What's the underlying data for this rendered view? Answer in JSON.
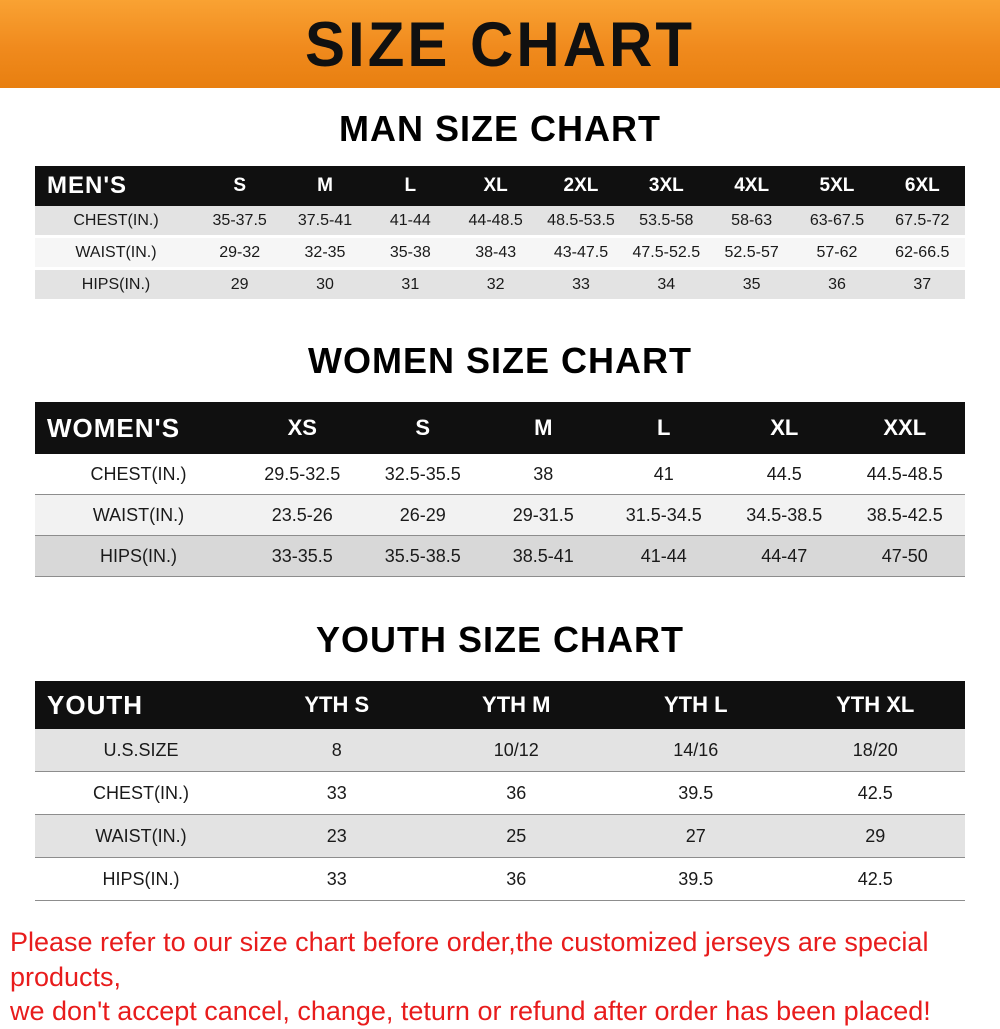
{
  "banner": {
    "title": "SIZE CHART",
    "accent_color": "#f08a1d",
    "text_color": "#101010"
  },
  "chart_data": [
    {
      "type": "table",
      "title": "MAN SIZE CHART",
      "columns": [
        "MEN'S",
        "S",
        "M",
        "L",
        "XL",
        "2XL",
        "3XL",
        "4XL",
        "5XL",
        "6XL"
      ],
      "rows": [
        [
          "CHEST(IN.)",
          "35-37.5",
          "37.5-41",
          "41-44",
          "44-48.5",
          "48.5-53.5",
          "53.5-58",
          "58-63",
          "63-67.5",
          "67.5-72"
        ],
        [
          "WAIST(IN.)",
          "29-32",
          "32-35",
          "35-38",
          "38-43",
          "43-47.5",
          "47.5-52.5",
          "52.5-57",
          "57-62",
          "62-66.5"
        ],
        [
          "HIPS(IN.)",
          "29",
          "30",
          "31",
          "32",
          "33",
          "34",
          "35",
          "36",
          "37"
        ]
      ]
    },
    {
      "type": "table",
      "title": "WOMEN SIZE CHART",
      "columns": [
        "WOMEN'S",
        "XS",
        "S",
        "M",
        "L",
        "XL",
        "XXL"
      ],
      "rows": [
        [
          "CHEST(IN.)",
          "29.5-32.5",
          "32.5-35.5",
          "38",
          "41",
          "44.5",
          "44.5-48.5"
        ],
        [
          "WAIST(IN.)",
          "23.5-26",
          "26-29",
          "29-31.5",
          "31.5-34.5",
          "34.5-38.5",
          "38.5-42.5"
        ],
        [
          "HIPS(IN.)",
          "33-35.5",
          "35.5-38.5",
          "38.5-41",
          "41-44",
          "44-47",
          "47-50"
        ]
      ]
    },
    {
      "type": "table",
      "title": "YOUTH SIZE CHART",
      "columns": [
        "YOUTH",
        "YTH S",
        "YTH M",
        "YTH L",
        "YTH XL"
      ],
      "rows": [
        [
          "U.S.SIZE",
          "8",
          "10/12",
          "14/16",
          "18/20"
        ],
        [
          "CHEST(IN.)",
          "33",
          "36",
          "39.5",
          "42.5"
        ],
        [
          "WAIST(IN.)",
          "23",
          "25",
          "27",
          "29"
        ],
        [
          "HIPS(IN.)",
          "33",
          "36",
          "39.5",
          "42.5"
        ]
      ]
    }
  ],
  "footer": {
    "color": "#e81c1c",
    "lines": [
      "Please refer to our size chart before order,the customized jerseys are special products,",
      "we don't accept cancel, change, teturn or refund after order has been placed!"
    ]
  }
}
